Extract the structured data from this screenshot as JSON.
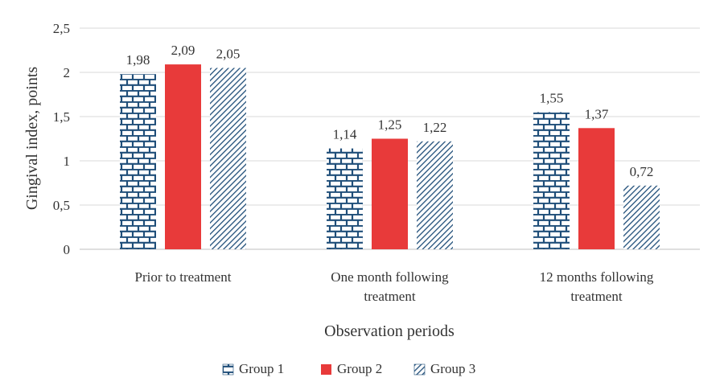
{
  "chart_data": {
    "type": "bar",
    "xlabel": "Observation periods",
    "ylabel": "Gingival index, points",
    "ylim": [
      0,
      2.5
    ],
    "yticks": [
      "0",
      "0,5",
      "1",
      "1,5",
      "2",
      "2,5"
    ],
    "ytick_values": [
      0,
      0.5,
      1,
      1.5,
      2,
      2.5
    ],
    "grid": true,
    "legend_position": "bottom",
    "categories": [
      [
        "Prior to treatment"
      ],
      [
        "One month following",
        "treatment"
      ],
      [
        "12 months following",
        "treatment"
      ]
    ],
    "series": [
      {
        "name": "Group 1",
        "values": [
          1.98,
          1.14,
          1.55
        ],
        "labels": [
          "1,98",
          "1,14",
          "1,55"
        ],
        "color": "#1f4e79",
        "pattern": "brick"
      },
      {
        "name": "Group 2",
        "values": [
          2.09,
          1.25,
          1.37
        ],
        "labels": [
          "2,09",
          "1,25",
          "1,37"
        ],
        "color": "#e83a3a",
        "pattern": "solid"
      },
      {
        "name": "Group 3",
        "values": [
          2.05,
          1.22,
          0.72
        ],
        "labels": [
          "2,05",
          "1,22",
          "0,72"
        ],
        "color": "#1f4e79",
        "pattern": "diagonal"
      }
    ]
  }
}
